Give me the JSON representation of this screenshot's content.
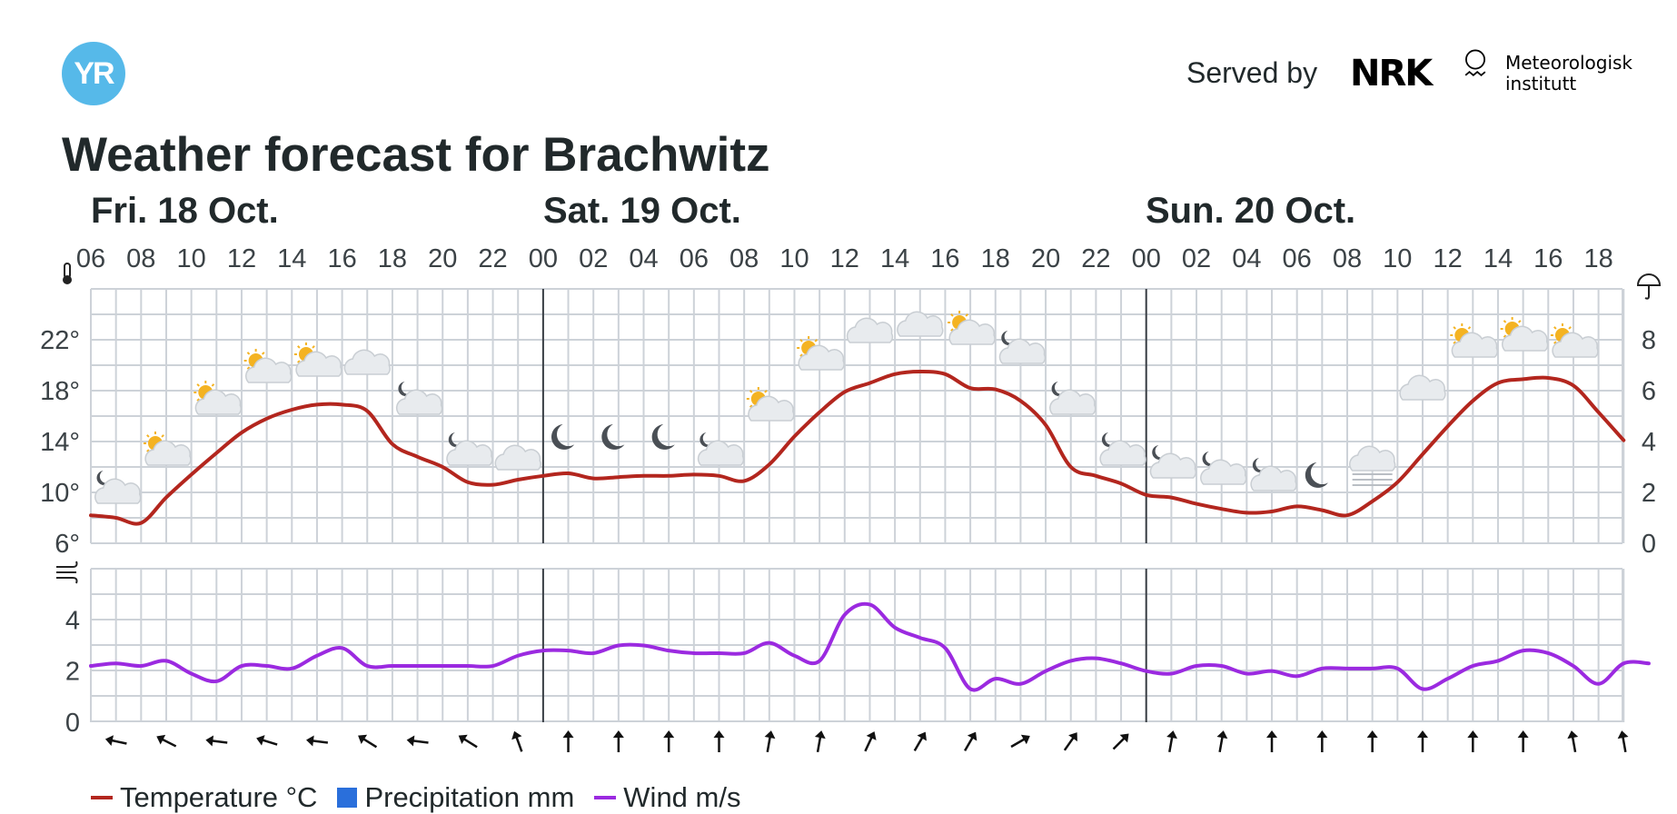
{
  "header": {
    "logo_text": "YR",
    "served_by": "Served by",
    "nrk_logo_text": "NRK",
    "met_logo_lines": [
      "Meteorologisk",
      "institutt"
    ],
    "title": "Weather forecast for Brachwitz"
  },
  "colors": {
    "temperature": "#b3261e",
    "precipitation": "#2a6fdb",
    "wind": "#9b2ae0",
    "grid": "#cdd2d8",
    "day_divider": "#3a3f45",
    "logo": "#56b9e9"
  },
  "legend": [
    {
      "label": "Temperature °C",
      "color": "#b3261e",
      "shape": "line"
    },
    {
      "label": "Precipitation mm",
      "color": "#2a6fdb",
      "shape": "box"
    },
    {
      "label": "Wind m/s",
      "color": "#9b2ae0",
      "shape": "line"
    }
  ],
  "chart_data": {
    "type": "line",
    "days": [
      "Fri. 18 Oct.",
      "Sat. 19 Oct.",
      "Sun. 20 Oct."
    ],
    "hour_ticks": [
      "06",
      "08",
      "10",
      "12",
      "14",
      "16",
      "18",
      "20",
      "22",
      "00",
      "02",
      "04",
      "06",
      "08",
      "10",
      "12",
      "14",
      "16",
      "18",
      "20",
      "22",
      "00",
      "02",
      "04",
      "06",
      "08",
      "10",
      "12",
      "14",
      "16",
      "18"
    ],
    "temperature_panel": {
      "icon_left": "thermometer-icon",
      "icon_right": "umbrella-icon",
      "y_ticks_left": [
        "22°",
        "18°",
        "14°",
        "10°",
        "6°"
      ],
      "y_ticks_right": [
        "8",
        "6",
        "4",
        "2",
        "0"
      ],
      "ylim": [
        6,
        26
      ],
      "precip_ylim": [
        0,
        10
      ],
      "temperature_c": [
        [
          0,
          8.2
        ],
        [
          1,
          8.0
        ],
        [
          2,
          7.6
        ],
        [
          3,
          9.6
        ],
        [
          4,
          11.4
        ],
        [
          5,
          13.1
        ],
        [
          6,
          14.7
        ],
        [
          7,
          15.8
        ],
        [
          8,
          16.5
        ],
        [
          9,
          16.9
        ],
        [
          10,
          16.9
        ],
        [
          11,
          16.4
        ],
        [
          12,
          13.8
        ],
        [
          13,
          12.8
        ],
        [
          14,
          12.0
        ],
        [
          15,
          10.8
        ],
        [
          16,
          10.6
        ],
        [
          17,
          11.0
        ],
        [
          18,
          11.3
        ],
        [
          19,
          11.5
        ],
        [
          20,
          11.1
        ],
        [
          21,
          11.2
        ],
        [
          22,
          11.3
        ],
        [
          23,
          11.3
        ],
        [
          24,
          11.4
        ],
        [
          25,
          11.3
        ],
        [
          26,
          10.9
        ],
        [
          27,
          12.2
        ],
        [
          28,
          14.4
        ],
        [
          29,
          16.3
        ],
        [
          30,
          17.9
        ],
        [
          31,
          18.6
        ],
        [
          32,
          19.3
        ],
        [
          33,
          19.5
        ],
        [
          34,
          19.3
        ],
        [
          35,
          18.2
        ],
        [
          36,
          18.1
        ],
        [
          37,
          17.2
        ],
        [
          38,
          15.3
        ],
        [
          39,
          12.0
        ],
        [
          40,
          11.3
        ],
        [
          41,
          10.7
        ],
        [
          42,
          9.8
        ],
        [
          43,
          9.6
        ],
        [
          44,
          9.1
        ],
        [
          45,
          8.7
        ],
        [
          46,
          8.4
        ],
        [
          47,
          8.5
        ],
        [
          48,
          8.9
        ],
        [
          49,
          8.6
        ],
        [
          50,
          8.2
        ],
        [
          51,
          9.3
        ],
        [
          52,
          10.8
        ],
        [
          53,
          13.0
        ],
        [
          54,
          15.2
        ],
        [
          55,
          17.2
        ],
        [
          56,
          18.6
        ],
        [
          57,
          18.9
        ],
        [
          58,
          19.0
        ],
        [
          59,
          18.4
        ],
        [
          60,
          16.3
        ],
        [
          61,
          14.1
        ]
      ],
      "precipitation_mm": []
    },
    "wind_panel": {
      "icon_left": "wind-icon",
      "y_ticks": [
        "4",
        "2",
        "0"
      ],
      "ylim": [
        0,
        6
      ],
      "wind_ms": [
        [
          0,
          2.2
        ],
        [
          1,
          2.3
        ],
        [
          2,
          2.2
        ],
        [
          3,
          2.4
        ],
        [
          4,
          1.9
        ],
        [
          5,
          1.6
        ],
        [
          6,
          2.2
        ],
        [
          7,
          2.2
        ],
        [
          8,
          2.1
        ],
        [
          9,
          2.6
        ],
        [
          10,
          2.9
        ],
        [
          11,
          2.2
        ],
        [
          12,
          2.2
        ],
        [
          13,
          2.2
        ],
        [
          14,
          2.2
        ],
        [
          15,
          2.2
        ],
        [
          16,
          2.2
        ],
        [
          17,
          2.6
        ],
        [
          18,
          2.8
        ],
        [
          19,
          2.8
        ],
        [
          20,
          2.7
        ],
        [
          21,
          3.0
        ],
        [
          22,
          3.0
        ],
        [
          23,
          2.8
        ],
        [
          24,
          2.7
        ],
        [
          25,
          2.7
        ],
        [
          26,
          2.7
        ],
        [
          27,
          3.1
        ],
        [
          28,
          2.6
        ],
        [
          29,
          2.4
        ],
        [
          30,
          4.2
        ],
        [
          31,
          4.6
        ],
        [
          32,
          3.7
        ],
        [
          33,
          3.3
        ],
        [
          34,
          2.9
        ],
        [
          35,
          1.3
        ],
        [
          36,
          1.7
        ],
        [
          37,
          1.5
        ],
        [
          38,
          2.0
        ],
        [
          39,
          2.4
        ],
        [
          40,
          2.5
        ],
        [
          41,
          2.3
        ],
        [
          42,
          2.0
        ],
        [
          43,
          1.9
        ],
        [
          44,
          2.2
        ],
        [
          45,
          2.2
        ],
        [
          46,
          1.9
        ],
        [
          47,
          2.0
        ],
        [
          48,
          1.8
        ],
        [
          49,
          2.1
        ],
        [
          50,
          2.1
        ],
        [
          51,
          2.1
        ],
        [
          52,
          2.1
        ],
        [
          53,
          1.3
        ],
        [
          54,
          1.7
        ],
        [
          55,
          2.2
        ],
        [
          56,
          2.4
        ],
        [
          57,
          2.8
        ],
        [
          58,
          2.7
        ],
        [
          59,
          2.2
        ],
        [
          60,
          1.5
        ],
        [
          61,
          2.3
        ],
        [
          62,
          2.3
        ]
      ],
      "wind_direction_deg": [
        282,
        297,
        277,
        287,
        277,
        302,
        277,
        302,
        340,
        0,
        0,
        0,
        0,
        10,
        10,
        25,
        30,
        30,
        60,
        35,
        45,
        10,
        10,
        0,
        0,
        0,
        0,
        0,
        0,
        350,
        350
      ]
    },
    "weather_symbols": [
      {
        "slot": 0,
        "temp": 10,
        "icon": "cloud-moon-icon"
      },
      {
        "slot": 1,
        "temp": 13,
        "icon": "cloud-sun-icon"
      },
      {
        "slot": 2,
        "temp": 17,
        "icon": "cloud-sun-icon"
      },
      {
        "slot": 3,
        "temp": 19.5,
        "icon": "cloud-sun-icon"
      },
      {
        "slot": 4,
        "temp": 20,
        "icon": "cloud-sun-icon"
      },
      {
        "slot": 5,
        "temp": 20,
        "icon": "cloud-icon"
      },
      {
        "slot": 6,
        "temp": 17,
        "icon": "cloud-moon-icon"
      },
      {
        "slot": 7,
        "temp": 13,
        "icon": "cloud-moon-icon"
      },
      {
        "slot": 8,
        "temp": 12.5,
        "icon": "cloud-icon"
      },
      {
        "slot": 9,
        "temp": 13.5,
        "icon": "moon-icon"
      },
      {
        "slot": 10,
        "temp": 13.5,
        "icon": "moon-icon"
      },
      {
        "slot": 11,
        "temp": 13.5,
        "icon": "moon-icon"
      },
      {
        "slot": 12,
        "temp": 13,
        "icon": "cloud-moon-icon"
      },
      {
        "slot": 13,
        "temp": 16.5,
        "icon": "cloud-sun-icon"
      },
      {
        "slot": 14,
        "temp": 20.5,
        "icon": "cloud-sun-icon"
      },
      {
        "slot": 15,
        "temp": 22.5,
        "icon": "cloud-icon"
      },
      {
        "slot": 16,
        "temp": 23,
        "icon": "cloud-icon"
      },
      {
        "slot": 17,
        "temp": 22.5,
        "icon": "cloud-sun-icon"
      },
      {
        "slot": 18,
        "temp": 21,
        "icon": "cloud-moon-icon"
      },
      {
        "slot": 19,
        "temp": 17,
        "icon": "cloud-moon-icon"
      },
      {
        "slot": 20,
        "temp": 13,
        "icon": "cloud-moon-icon"
      },
      {
        "slot": 21,
        "temp": 12,
        "icon": "cloud-moon-icon"
      },
      {
        "slot": 22,
        "temp": 11.5,
        "icon": "cloud-moon-icon"
      },
      {
        "slot": 23,
        "temp": 11,
        "icon": "cloud-moon-icon"
      },
      {
        "slot": 24,
        "temp": 10.5,
        "icon": "moon-icon"
      },
      {
        "slot": 25,
        "temp": 12,
        "icon": "fog-icon"
      },
      {
        "slot": 26,
        "temp": 18,
        "icon": "cloud-icon"
      },
      {
        "slot": 27,
        "temp": 21.5,
        "icon": "cloud-sun-icon"
      },
      {
        "slot": 28,
        "temp": 22,
        "icon": "cloud-sun-icon"
      },
      {
        "slot": 29,
        "temp": 21.5,
        "icon": "cloud-sun-icon"
      }
    ]
  }
}
